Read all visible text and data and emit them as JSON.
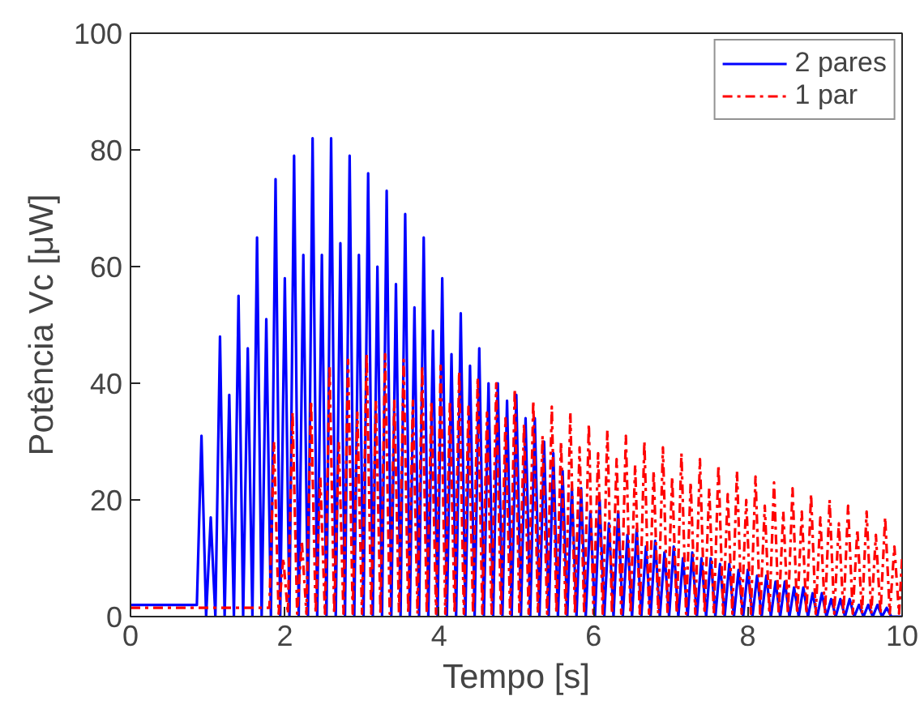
{
  "chart_data": {
    "type": "line",
    "xlabel": "Tempo [s]",
    "ylabel": "Potência Vc [μW]",
    "xlim": [
      0,
      10
    ],
    "ylim": [
      0,
      100
    ],
    "xticks": [
      0,
      2,
      4,
      6,
      8,
      10
    ],
    "yticks": [
      0,
      20,
      40,
      60,
      80,
      100
    ],
    "grid": false,
    "legend": "top right",
    "marker": "none",
    "series": [
      {
        "name": "2 pares",
        "color": "#0000ff",
        "line_style": "solid",
        "x": [
          0,
          0.86,
          0.92,
          0.98,
          1.04,
          1.1,
          1.16,
          1.22,
          1.28,
          1.34,
          1.4,
          1.46,
          1.52,
          1.58,
          1.64,
          1.7,
          1.76,
          1.82,
          1.88,
          1.94,
          2.0,
          2.06,
          2.12,
          2.18,
          2.24,
          2.3,
          2.36,
          2.42,
          2.48,
          2.54,
          2.6,
          2.66,
          2.72,
          2.78,
          2.84,
          2.9,
          2.96,
          3.02,
          3.08,
          3.14,
          3.2,
          3.26,
          3.32,
          3.38,
          3.44,
          3.5,
          3.56,
          3.62,
          3.68,
          3.74,
          3.8,
          3.86,
          3.92,
          3.98,
          4.04,
          4.1,
          4.16,
          4.22,
          4.28,
          4.34,
          4.4,
          4.46,
          4.52,
          4.58,
          4.64,
          4.7,
          4.76,
          4.82,
          4.88,
          4.94,
          5.0,
          5.06,
          5.12,
          5.18,
          5.24,
          5.3,
          5.36,
          5.42,
          5.48,
          5.54,
          5.6,
          5.66,
          5.72,
          5.78,
          5.84,
          5.9,
          5.96,
          6.02,
          6.08,
          6.14,
          6.2,
          6.26,
          6.32,
          6.38,
          6.44,
          6.5,
          6.56,
          6.62,
          6.68,
          6.74,
          6.8,
          6.86,
          6.92,
          6.98,
          7.04,
          7.1,
          7.16,
          7.22,
          7.28,
          7.34,
          7.4,
          7.46,
          7.52,
          7.58,
          7.64,
          7.7,
          7.76,
          7.82,
          7.88,
          7.94,
          8.0,
          8.06,
          8.12,
          8.18,
          8.24,
          8.3,
          8.36,
          8.42,
          8.48,
          8.54,
          8.6,
          8.66,
          8.72,
          8.78,
          8.84,
          8.9,
          8.96,
          9.02,
          9.08,
          9.14,
          9.2,
          9.26,
          9.32,
          9.38,
          9.44,
          9.5,
          9.56,
          9.62,
          9.68,
          9.74,
          9.8,
          9.86,
          10
        ],
        "values": [
          2,
          2,
          31,
          0,
          17,
          0,
          48,
          0,
          38,
          0,
          55,
          0,
          46,
          0,
          65,
          0,
          51,
          0,
          75,
          0,
          58,
          0,
          79,
          0,
          62,
          0,
          82,
          0,
          62,
          0,
          82,
          0,
          64,
          0,
          79,
          0,
          62,
          0,
          76,
          0,
          60,
          0,
          73,
          0,
          57,
          0,
          69,
          0,
          53,
          0,
          65,
          0,
          49,
          0,
          58,
          0,
          45,
          0,
          52,
          0,
          43,
          0,
          46,
          0,
          40,
          0,
          40,
          0,
          37,
          0,
          38,
          0,
          34,
          0,
          34,
          0,
          30,
          0,
          28,
          0,
          25,
          0,
          22,
          0,
          22,
          0,
          18,
          0,
          20,
          0,
          16,
          0,
          18,
          0,
          14,
          0,
          15,
          0,
          12,
          0,
          13,
          0,
          11,
          0,
          12,
          0,
          10,
          0,
          11,
          0,
          10,
          0,
          10,
          0,
          9,
          0,
          9,
          0,
          8,
          0,
          8,
          0,
          7,
          0,
          7,
          0,
          6,
          0,
          6,
          0,
          5,
          0,
          5,
          0,
          4,
          0,
          4,
          0,
          3,
          0,
          3,
          0,
          3,
          0,
          2,
          0,
          2,
          0,
          2,
          0,
          1.5,
          0,
          0
        ]
      },
      {
        "name": "1 par",
        "color": "#ff0000",
        "line_style": "dashed",
        "x": [
          0,
          1.8,
          1.86,
          1.92,
          1.98,
          2.04,
          2.1,
          2.16,
          2.22,
          2.28,
          2.34,
          2.4,
          2.46,
          2.52,
          2.58,
          2.64,
          2.7,
          2.76,
          2.82,
          2.88,
          2.94,
          3.0,
          3.06,
          3.12,
          3.18,
          3.24,
          3.3,
          3.36,
          3.42,
          3.48,
          3.54,
          3.6,
          3.66,
          3.72,
          3.78,
          3.84,
          3.9,
          3.96,
          4.02,
          4.08,
          4.14,
          4.2,
          4.26,
          4.32,
          4.38,
          4.44,
          4.5,
          4.56,
          4.62,
          4.68,
          4.74,
          4.8,
          4.86,
          4.92,
          4.98,
          5.04,
          5.1,
          5.16,
          5.22,
          5.28,
          5.34,
          5.4,
          5.46,
          5.52,
          5.58,
          5.64,
          5.7,
          5.76,
          5.82,
          5.88,
          5.94,
          6.0,
          6.06,
          6.12,
          6.18,
          6.24,
          6.3,
          6.36,
          6.42,
          6.48,
          6.54,
          6.6,
          6.66,
          6.72,
          6.78,
          6.84,
          6.9,
          6.96,
          7.02,
          7.08,
          7.14,
          7.2,
          7.26,
          7.32,
          7.38,
          7.44,
          7.5,
          7.56,
          7.62,
          7.68,
          7.74,
          7.8,
          7.86,
          7.92,
          7.98,
          8.04,
          8.1,
          8.16,
          8.22,
          8.28,
          8.34,
          8.4,
          8.46,
          8.52,
          8.58,
          8.64,
          8.7,
          8.76,
          8.82,
          8.88,
          8.94,
          9.0,
          9.06,
          9.12,
          9.18,
          9.24,
          9.3,
          9.36,
          9.42,
          9.48,
          9.54,
          9.6,
          9.66,
          9.72,
          9.78,
          9.84,
          9.9,
          9.96,
          10
        ],
        "values": [
          1.5,
          1.5,
          30,
          0.5,
          10,
          0.5,
          35,
          0.5,
          13,
          0.5,
          37,
          0.5,
          24,
          0.5,
          43,
          0.5,
          30,
          0.5,
          44,
          0.5,
          35,
          0.5,
          45,
          0.5,
          37,
          0.5,
          45,
          0.5,
          37,
          0.5,
          44,
          0.5,
          37,
          0.5,
          43,
          0.5,
          37,
          0.5,
          43,
          0.5,
          37,
          0.5,
          42,
          0.5,
          36,
          0.5,
          41,
          0.5,
          35,
          0.5,
          40,
          0.5,
          34,
          0.5,
          39,
          0.5,
          33,
          0.5,
          37,
          0.5,
          31,
          0.5,
          36,
          0.5,
          30,
          0.5,
          35,
          0.5,
          29,
          0.5,
          33,
          0.5,
          28,
          0.5,
          32,
          0.5,
          27,
          0.5,
          31,
          0.5,
          26,
          0.5,
          30,
          0.5,
          25,
          0.5,
          29,
          0.5,
          24,
          0.5,
          28,
          0.5,
          23,
          0.5,
          27,
          0.5,
          22,
          0.5,
          26,
          0.5,
          21,
          0.5,
          25,
          0.5,
          20,
          0.5,
          24,
          0.5,
          19,
          0.5,
          23,
          0.5,
          18,
          0.5,
          22,
          0.5,
          18,
          0.5,
          21,
          0.5,
          17,
          0.5,
          20,
          0.5,
          16,
          0.5,
          19,
          0.5,
          15,
          0.5,
          18,
          0.5,
          14,
          0.5,
          17,
          0.5,
          12,
          0.5,
          10
        ]
      }
    ]
  }
}
